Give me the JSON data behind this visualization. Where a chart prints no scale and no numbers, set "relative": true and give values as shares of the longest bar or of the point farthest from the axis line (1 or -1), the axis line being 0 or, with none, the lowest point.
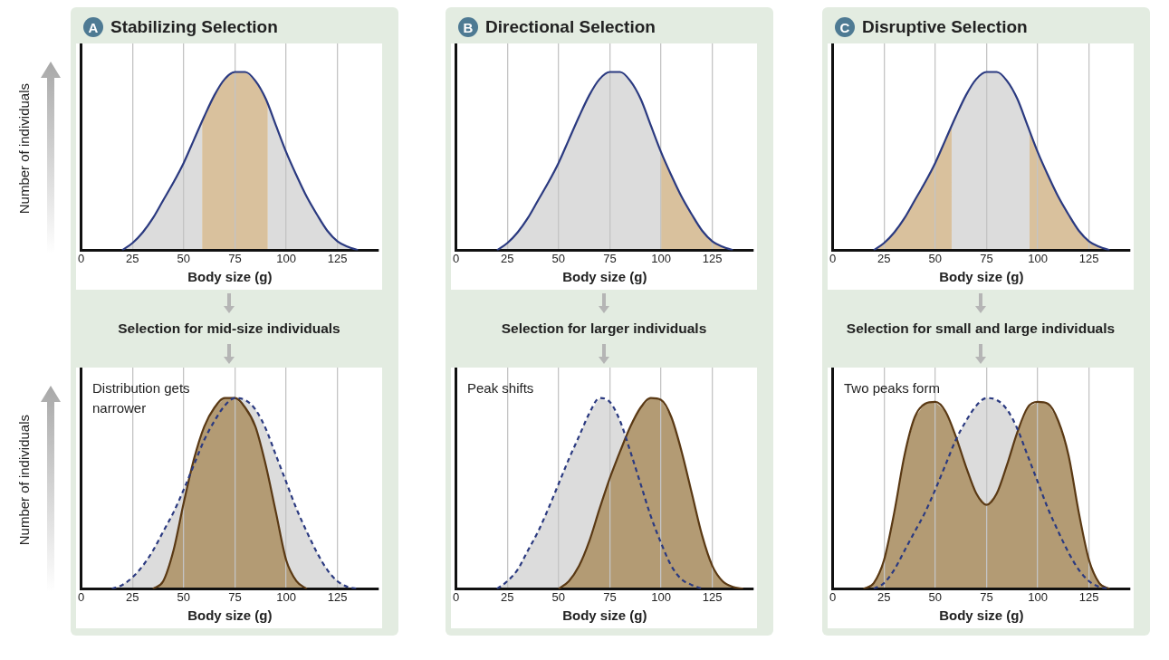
{
  "chart_data": [
    {
      "type": "area",
      "title": "Stabilizing Selection",
      "annotations": [
        "A"
      ],
      "xlabel": "Body size (g)",
      "ylabel": "Number of individuals",
      "relative": true,
      "grid": "x",
      "xlim": [
        0,
        145
      ],
      "xticks": [
        0,
        25,
        50,
        75,
        100,
        125
      ],
      "series": [
        {
          "type": "line",
          "color": "#2b3a80",
          "x": [
            20,
            25,
            30,
            35,
            40,
            45,
            50,
            55,
            60,
            65,
            70,
            75,
            80,
            85,
            90,
            95,
            100,
            105,
            110,
            115,
            120,
            125,
            130,
            135
          ],
          "values": [
            0,
            0.04,
            0.1,
            0.18,
            0.28,
            0.38,
            0.49,
            0.62,
            0.75,
            0.87,
            0.96,
            1,
            1,
            0.95,
            0.85,
            0.7,
            0.55,
            0.42,
            0.3,
            0.2,
            0.11,
            0.05,
            0.02,
            0
          ]
        },
        {
          "color": "#dcdcdc",
          "x": [
            20,
            25,
            30,
            35,
            40,
            45,
            50,
            55,
            59,
            75,
            91,
            95,
            100,
            105,
            110,
            115,
            120,
            125,
            130,
            135
          ],
          "values": [
            0,
            0.04,
            0.1,
            0.18,
            0.28,
            0.38,
            0.49,
            0.62,
            0.72,
            null,
            0.82,
            0.7,
            0.55,
            0.42,
            0.3,
            0.2,
            0.11,
            0.05,
            0.02,
            0
          ]
        },
        {
          "color": "#d9c19d",
          "x": [
            59,
            60,
            65,
            70,
            75,
            80,
            85,
            90,
            91
          ],
          "values": [
            0.72,
            0.75,
            0.87,
            0.96,
            1,
            1,
            0.95,
            0.85,
            0.82
          ]
        }
      ]
    },
    {
      "type": "area",
      "subtitle": "Selection for mid-size individuals",
      "annotations": [
        "Distribution gets narrower"
      ],
      "xlabel": "Body size (g)",
      "ylabel": "Number of individuals",
      "relative": true,
      "grid": "x",
      "xlim": [
        0,
        145
      ],
      "xticks": [
        0,
        25,
        50,
        75,
        100,
        125
      ],
      "series": [
        {
          "color": "#2b3a80",
          "line_style": "dashed",
          "x": [
            15,
            20,
            25,
            30,
            35,
            40,
            45,
            50,
            55,
            60,
            65,
            70,
            75,
            80,
            85,
            90,
            95,
            100,
            105,
            110,
            115,
            120,
            125,
            130,
            135
          ],
          "values": [
            0,
            0.02,
            0.06,
            0.12,
            0.2,
            0.3,
            0.4,
            0.52,
            0.65,
            0.78,
            0.88,
            0.96,
            1,
            0.99,
            0.94,
            0.84,
            0.7,
            0.56,
            0.42,
            0.3,
            0.19,
            0.1,
            0.04,
            0.01,
            0
          ]
        },
        {
          "color": "#5a3914",
          "line_style": "solid",
          "x": [
            35,
            40,
            45,
            50,
            55,
            60,
            65,
            70,
            75,
            80,
            85,
            90,
            95,
            100,
            105,
            110
          ],
          "values": [
            0,
            0.04,
            0.2,
            0.45,
            0.68,
            0.85,
            0.95,
            1,
            1,
            0.95,
            0.85,
            0.65,
            0.4,
            0.15,
            0.04,
            0
          ]
        }
      ]
    },
    {
      "type": "area",
      "title": "Directional Selection",
      "annotations": [
        "B"
      ],
      "xlabel": "Body size (g)",
      "relative": true,
      "grid": "x",
      "xlim": [
        0,
        145
      ],
      "xticks": [
        0,
        25,
        50,
        75,
        100,
        125
      ],
      "series": [
        {
          "type": "line",
          "color": "#2b3a80",
          "x": [
            20,
            25,
            30,
            35,
            40,
            45,
            50,
            55,
            60,
            65,
            70,
            75,
            80,
            85,
            90,
            95,
            100,
            105,
            110,
            115,
            120,
            125,
            130,
            135
          ],
          "values": [
            0,
            0.04,
            0.1,
            0.18,
            0.28,
            0.38,
            0.49,
            0.62,
            0.75,
            0.87,
            0.96,
            1,
            1,
            0.95,
            0.85,
            0.7,
            0.55,
            0.42,
            0.3,
            0.2,
            0.11,
            0.05,
            0.02,
            0
          ]
        },
        {
          "color": "#dcdcdc",
          "x": [
            20,
            25,
            30,
            35,
            40,
            45,
            50,
            55,
            60,
            65,
            70,
            75,
            80,
            85,
            90,
            95,
            100
          ],
          "values": [
            0,
            0.04,
            0.1,
            0.18,
            0.28,
            0.38,
            0.49,
            0.62,
            0.75,
            0.87,
            0.96,
            1,
            1,
            0.95,
            0.85,
            0.7,
            0.55
          ]
        },
        {
          "color": "#d9c19d",
          "x": [
            100,
            105,
            110,
            115,
            120,
            125,
            130,
            135
          ],
          "values": [
            0.55,
            0.42,
            0.3,
            0.2,
            0.11,
            0.05,
            0.02,
            0
          ]
        }
      ]
    },
    {
      "type": "area",
      "subtitle": "Selection for larger individuals",
      "annotations": [
        "Peak shifts"
      ],
      "xlabel": "Body size (g)",
      "relative": true,
      "grid": "x",
      "xlim": [
        0,
        145
      ],
      "xticks": [
        0,
        25,
        50,
        75,
        100,
        125
      ],
      "series": [
        {
          "color": "#2b3a80",
          "line_style": "dashed",
          "x": [
            20,
            25,
            30,
            35,
            40,
            45,
            50,
            55,
            60,
            65,
            70,
            75,
            80,
            85,
            90,
            95,
            100,
            105,
            110,
            115,
            120
          ],
          "values": [
            0,
            0.04,
            0.1,
            0.2,
            0.3,
            0.42,
            0.55,
            0.68,
            0.8,
            0.92,
            1,
            0.98,
            0.88,
            0.72,
            0.55,
            0.38,
            0.24,
            0.12,
            0.05,
            0.02,
            0
          ]
        },
        {
          "color": "#5a3914",
          "line_style": "solid",
          "x": [
            50,
            55,
            60,
            65,
            70,
            75,
            80,
            85,
            90,
            95,
            100,
            105,
            110,
            115,
            120,
            125,
            130,
            135,
            140
          ],
          "values": [
            0,
            0.04,
            0.12,
            0.25,
            0.42,
            0.58,
            0.72,
            0.85,
            0.95,
            1,
            0.99,
            0.9,
            0.72,
            0.5,
            0.28,
            0.12,
            0.04,
            0.01,
            0
          ]
        }
      ]
    },
    {
      "type": "area",
      "title": "Disruptive Selection",
      "annotations": [
        "C"
      ],
      "xlabel": "Body size (g)",
      "relative": true,
      "grid": "x",
      "xlim": [
        0,
        145
      ],
      "xticks": [
        0,
        25,
        50,
        75,
        100,
        125
      ],
      "series": [
        {
          "type": "line",
          "color": "#2b3a80",
          "x": [
            20,
            25,
            30,
            35,
            40,
            45,
            50,
            55,
            60,
            65,
            70,
            75,
            80,
            85,
            90,
            95,
            100,
            105,
            110,
            115,
            120,
            125,
            130,
            135
          ],
          "values": [
            0,
            0.04,
            0.1,
            0.18,
            0.28,
            0.38,
            0.49,
            0.62,
            0.75,
            0.87,
            0.96,
            1,
            1,
            0.95,
            0.85,
            0.7,
            0.55,
            0.42,
            0.3,
            0.2,
            0.11,
            0.05,
            0.02,
            0
          ]
        },
        {
          "color": "#dcdcdc",
          "x": [
            58,
            60,
            65,
            70,
            75,
            80,
            85,
            90,
            95,
            96
          ],
          "values": [
            0.7,
            0.75,
            0.87,
            0.96,
            1,
            1,
            0.95,
            0.85,
            0.7,
            0.67
          ]
        },
        {
          "color": "#d9c19d",
          "x": [
            20,
            25,
            30,
            35,
            40,
            45,
            50,
            55,
            58,
            75,
            96,
            100,
            105,
            110,
            115,
            120,
            125,
            130,
            135
          ],
          "values": [
            0,
            0.04,
            0.1,
            0.18,
            0.28,
            0.38,
            0.49,
            0.62,
            0.7,
            null,
            0.67,
            0.55,
            0.42,
            0.3,
            0.2,
            0.11,
            0.05,
            0.02,
            0
          ]
        }
      ]
    },
    {
      "type": "area",
      "subtitle": "Selection for small and large individuals",
      "annotations": [
        "Two peaks form"
      ],
      "xlabel": "Body size (g)",
      "relative": true,
      "grid": "x",
      "xlim": [
        0,
        145
      ],
      "xticks": [
        0,
        25,
        50,
        75,
        100,
        125
      ],
      "series": [
        {
          "color": "#2b3a80",
          "line_style": "dashed",
          "x": [
            20,
            25,
            30,
            35,
            40,
            45,
            50,
            55,
            60,
            65,
            70,
            75,
            80,
            85,
            90,
            95,
            100,
            105,
            110,
            115,
            120,
            125,
            130,
            135
          ],
          "values": [
            0,
            0.03,
            0.1,
            0.2,
            0.3,
            0.4,
            0.52,
            0.65,
            0.78,
            0.88,
            0.96,
            1,
            0.99,
            0.94,
            0.84,
            0.7,
            0.56,
            0.42,
            0.3,
            0.19,
            0.1,
            0.04,
            0.01,
            0
          ]
        },
        {
          "color": "#5a3914",
          "line_style": "solid",
          "x": [
            15,
            20,
            25,
            30,
            35,
            40,
            45,
            50,
            55,
            60,
            65,
            70,
            75,
            80,
            85,
            90,
            95,
            100,
            105,
            110,
            115,
            120,
            125,
            130,
            135
          ],
          "values": [
            0,
            0.03,
            0.15,
            0.4,
            0.7,
            0.9,
            0.97,
            0.98,
            0.93,
            0.8,
            0.64,
            0.5,
            0.44,
            0.5,
            0.65,
            0.82,
            0.95,
            0.98,
            0.97,
            0.88,
            0.7,
            0.4,
            0.15,
            0.03,
            0
          ]
        }
      ]
    }
  ]
}
